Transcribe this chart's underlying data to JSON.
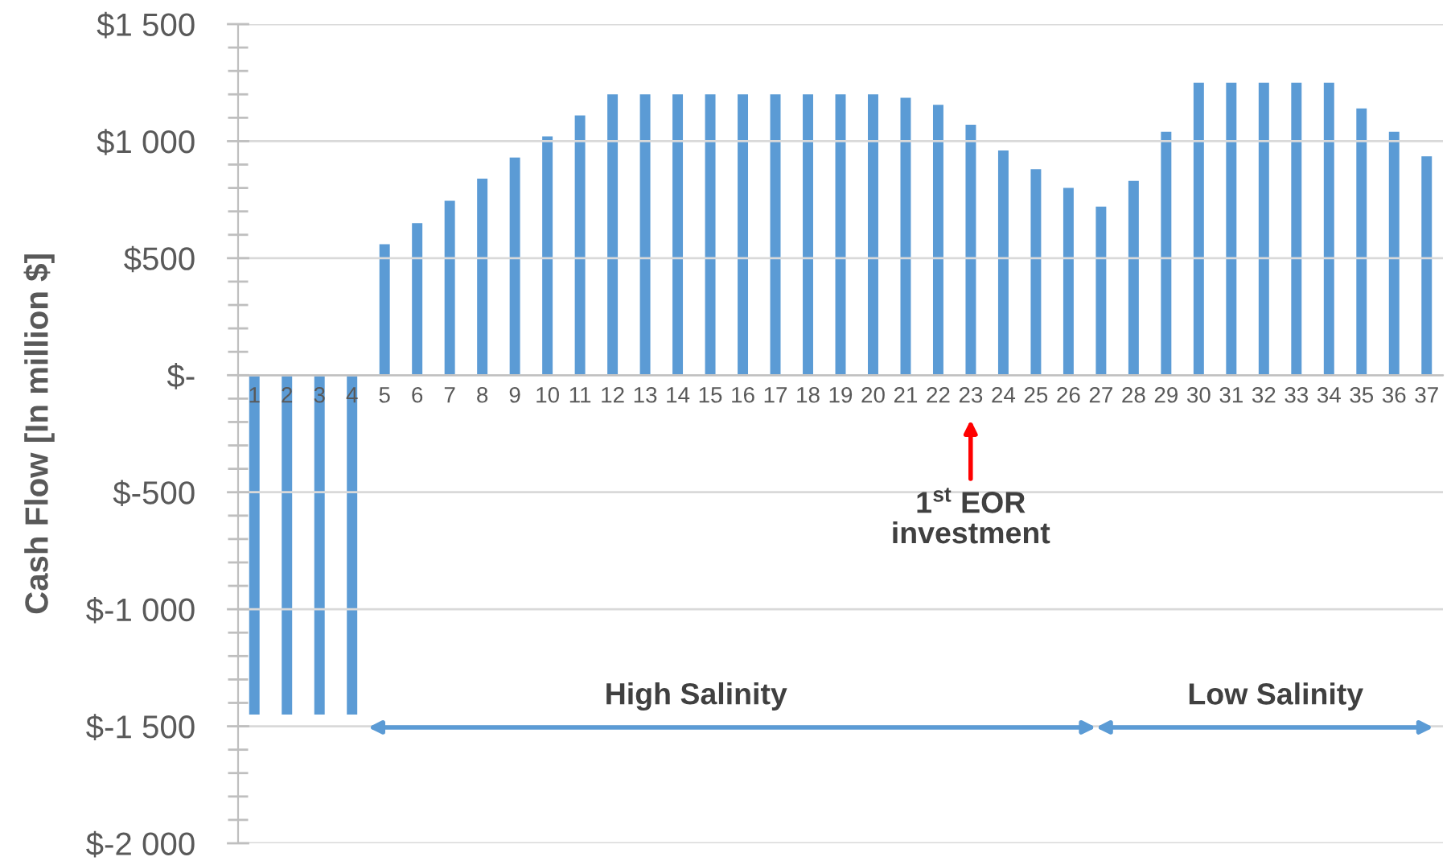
{
  "chart_data": {
    "type": "bar",
    "ylabel": "Cash Flow [In million $]",
    "categories": [
      "1",
      "2",
      "3",
      "4",
      "5",
      "6",
      "7",
      "8",
      "9",
      "10",
      "11",
      "12",
      "13",
      "14",
      "15",
      "16",
      "17",
      "18",
      "19",
      "20",
      "21",
      "22",
      "23",
      "24",
      "25",
      "26",
      "27",
      "28",
      "29",
      "30",
      "31",
      "32",
      "33",
      "34",
      "35",
      "36",
      "37"
    ],
    "values": [
      -1450,
      -1450,
      -1450,
      -1450,
      560,
      650,
      745,
      840,
      930,
      1020,
      1110,
      1200,
      1200,
      1200,
      1200,
      1200,
      1200,
      1200,
      1200,
      1200,
      1185,
      1155,
      1070,
      960,
      880,
      800,
      720,
      830,
      1040,
      1250,
      1250,
      1250,
      1250,
      1250,
      1140,
      1040,
      935
    ],
    "color": "#5b9bd5",
    "ylim": [
      -2000,
      1500
    ],
    "yticks": [
      {
        "value": -2000,
        "label": "$-2 000"
      },
      {
        "value": -1900,
        "label": null
      },
      {
        "value": -1800,
        "label": null
      },
      {
        "value": -1700,
        "label": null
      },
      {
        "value": -1600,
        "label": null
      },
      {
        "value": -1500,
        "label": "$-1 500"
      },
      {
        "value": -1400,
        "label": null
      },
      {
        "value": -1300,
        "label": null
      },
      {
        "value": -1200,
        "label": null
      },
      {
        "value": -1100,
        "label": null
      },
      {
        "value": -1000,
        "label": "$-1 000"
      },
      {
        "value": -900,
        "label": null
      },
      {
        "value": -800,
        "label": null
      },
      {
        "value": -700,
        "label": null
      },
      {
        "value": -600,
        "label": null
      },
      {
        "value": -500,
        "label": "$-500"
      },
      {
        "value": -400,
        "label": null
      },
      {
        "value": -300,
        "label": null
      },
      {
        "value": -200,
        "label": null
      },
      {
        "value": -100,
        "label": null
      },
      {
        "value": 0,
        "label": "$-"
      },
      {
        "value": 100,
        "label": null
      },
      {
        "value": 200,
        "label": null
      },
      {
        "value": 300,
        "label": null
      },
      {
        "value": 400,
        "label": null
      },
      {
        "value": 500,
        "label": "$500"
      },
      {
        "value": 600,
        "label": null
      },
      {
        "value": 700,
        "label": null
      },
      {
        "value": 800,
        "label": null
      },
      {
        "value": 900,
        "label": null
      },
      {
        "value": 1000,
        "label": "$1 000"
      },
      {
        "value": 1100,
        "label": null
      },
      {
        "value": 1200,
        "label": null
      },
      {
        "value": 1300,
        "label": null
      },
      {
        "value": 1400,
        "label": null
      },
      {
        "value": 1500,
        "label": "$1 500"
      }
    ],
    "grid": "y",
    "annotations": [
      "1$^{st}$ EOR\ninvestment",
      "High Salinity",
      "Low Salinity"
    ]
  }
}
